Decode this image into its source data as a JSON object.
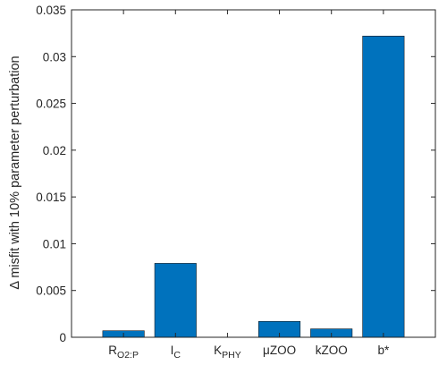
{
  "chart_data": {
    "type": "bar",
    "title": "",
    "xlabel": "",
    "ylabel": "Δ misfit with 10% parameter perturbation",
    "categories": [
      {
        "main": "R",
        "sub": "O2:P"
      },
      {
        "main": "I",
        "sub": "C"
      },
      {
        "main": "K",
        "sub": "PHY"
      },
      {
        "main": "μZOO",
        "sub": ""
      },
      {
        "main": "kZOO",
        "sub": ""
      },
      {
        "main": "b*",
        "sub": ""
      }
    ],
    "values": [
      0.0007,
      0.0079,
      0.0,
      0.0017,
      0.0009,
      0.0322
    ],
    "ylim": [
      0,
      0.035
    ],
    "yticks": [
      0,
      0.005,
      0.01,
      0.015,
      0.02,
      0.025,
      0.03,
      0.035
    ],
    "ytick_labels": [
      "0",
      "0.005",
      "0.01",
      "0.015",
      "0.02",
      "0.025",
      "0.03",
      "0.035"
    ],
    "grid": false,
    "bar_color": "#0072BD",
    "axis_color": "#262626"
  }
}
